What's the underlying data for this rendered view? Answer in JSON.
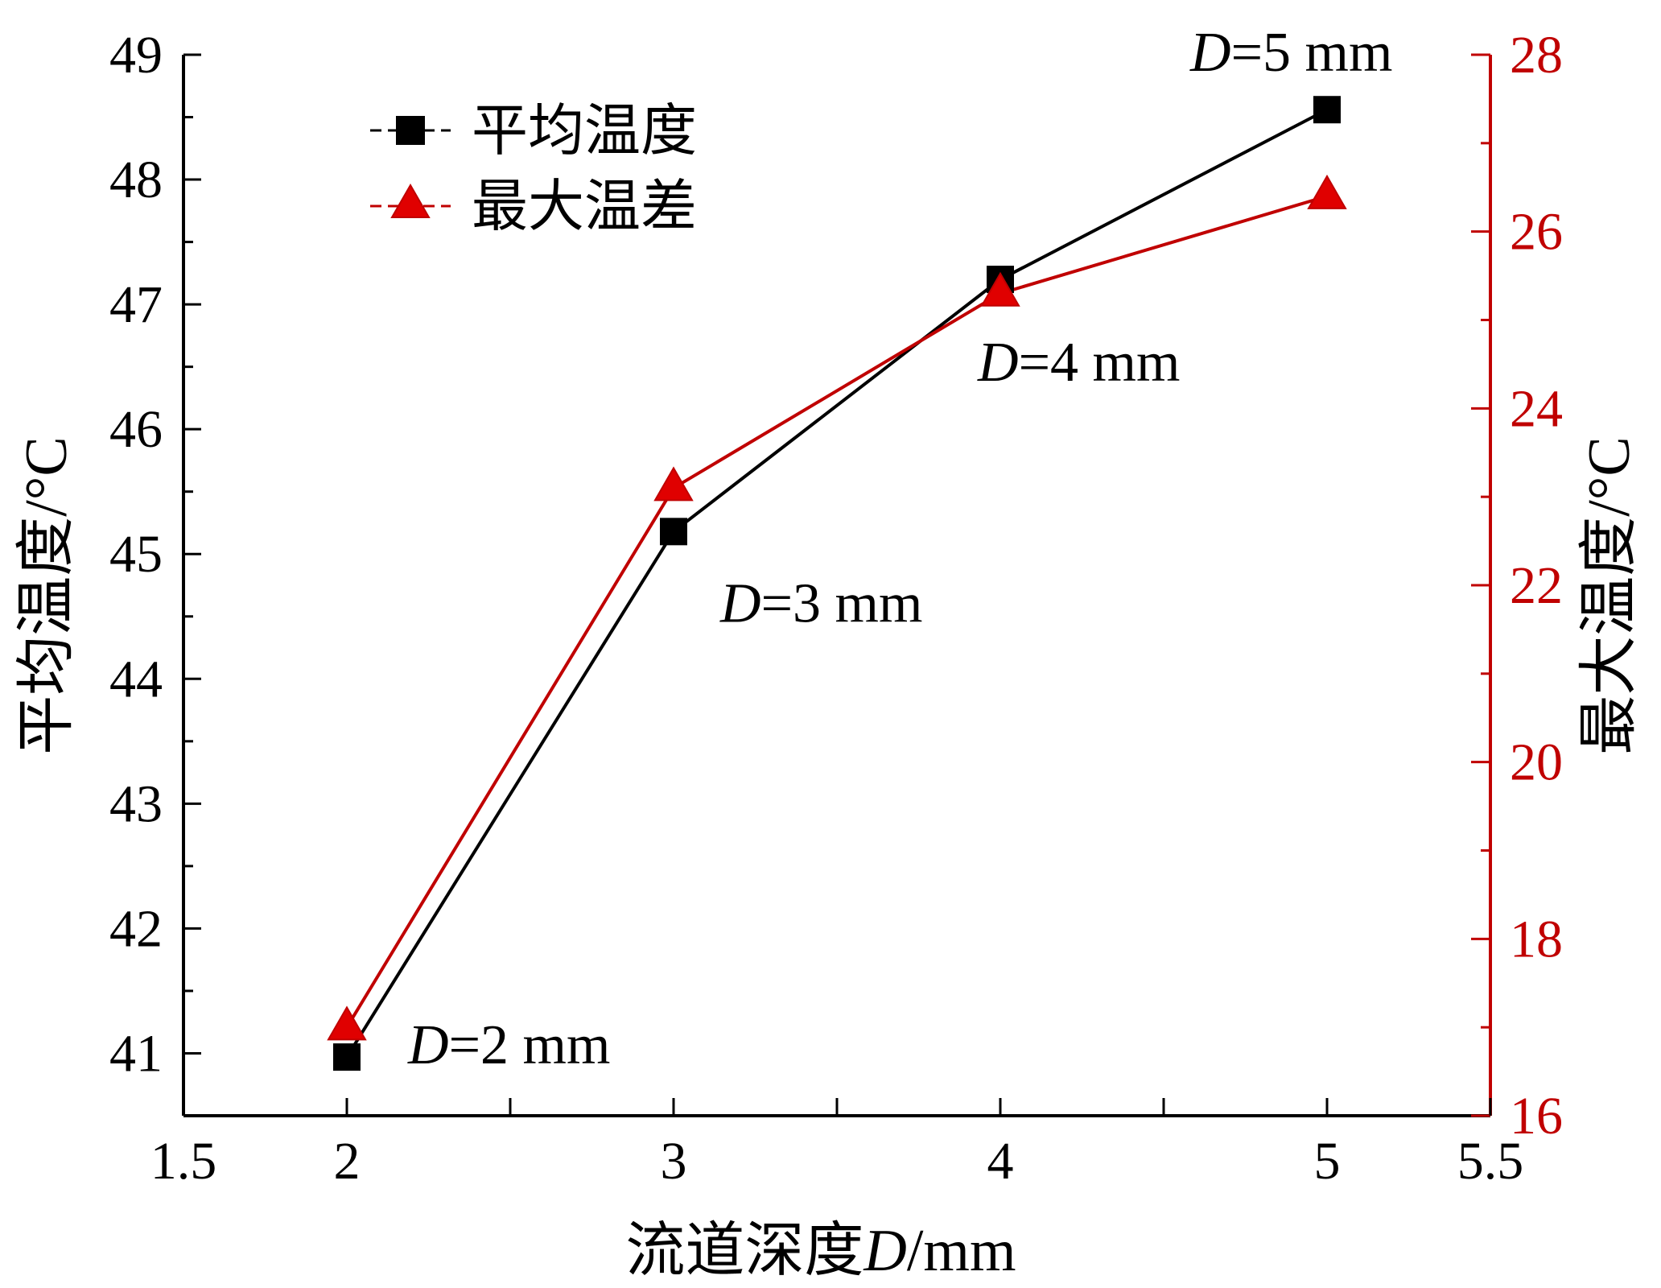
{
  "chart_data": {
    "type": "line",
    "x_axis": {
      "label_prefix": "流道深度",
      "label_var": "D",
      "label_suffix": "/mm",
      "range": [
        1.5,
        5.5
      ],
      "ticks": [
        "1.5",
        "2",
        "3",
        "4",
        "5",
        "5.5"
      ]
    },
    "y_left": {
      "label": "平均温度/°C",
      "range": [
        40.5,
        49
      ],
      "ticks": [
        "41",
        "42",
        "43",
        "44",
        "45",
        "46",
        "47",
        "48",
        "49"
      ],
      "color": "#000000"
    },
    "y_right": {
      "label": "最大温度/°C",
      "range": [
        16,
        28
      ],
      "ticks": [
        "16",
        "18",
        "20",
        "22",
        "24",
        "26",
        "28"
      ],
      "color": "#c00000"
    },
    "x": [
      2,
      3,
      4,
      5
    ],
    "series": [
      {
        "name": "平均温度",
        "axis": "left",
        "marker": "square",
        "color": "#000000",
        "values": [
          40.97,
          45.18,
          47.2,
          48.56
        ]
      },
      {
        "name": "最大温差",
        "axis": "right",
        "marker": "triangle",
        "color": "#c00000",
        "values": [
          17.0,
          23.1,
          25.3,
          26.4
        ]
      }
    ],
    "annotations": [
      {
        "var": "D",
        "text": "=2 mm",
        "x": 2
      },
      {
        "var": "D",
        "text": "=3 mm",
        "x": 3
      },
      {
        "var": "D",
        "text": "=4 mm",
        "x": 4
      },
      {
        "var": "D",
        "text": "=5 mm",
        "x": 5
      }
    ],
    "grid": false,
    "legend": "top-left"
  }
}
